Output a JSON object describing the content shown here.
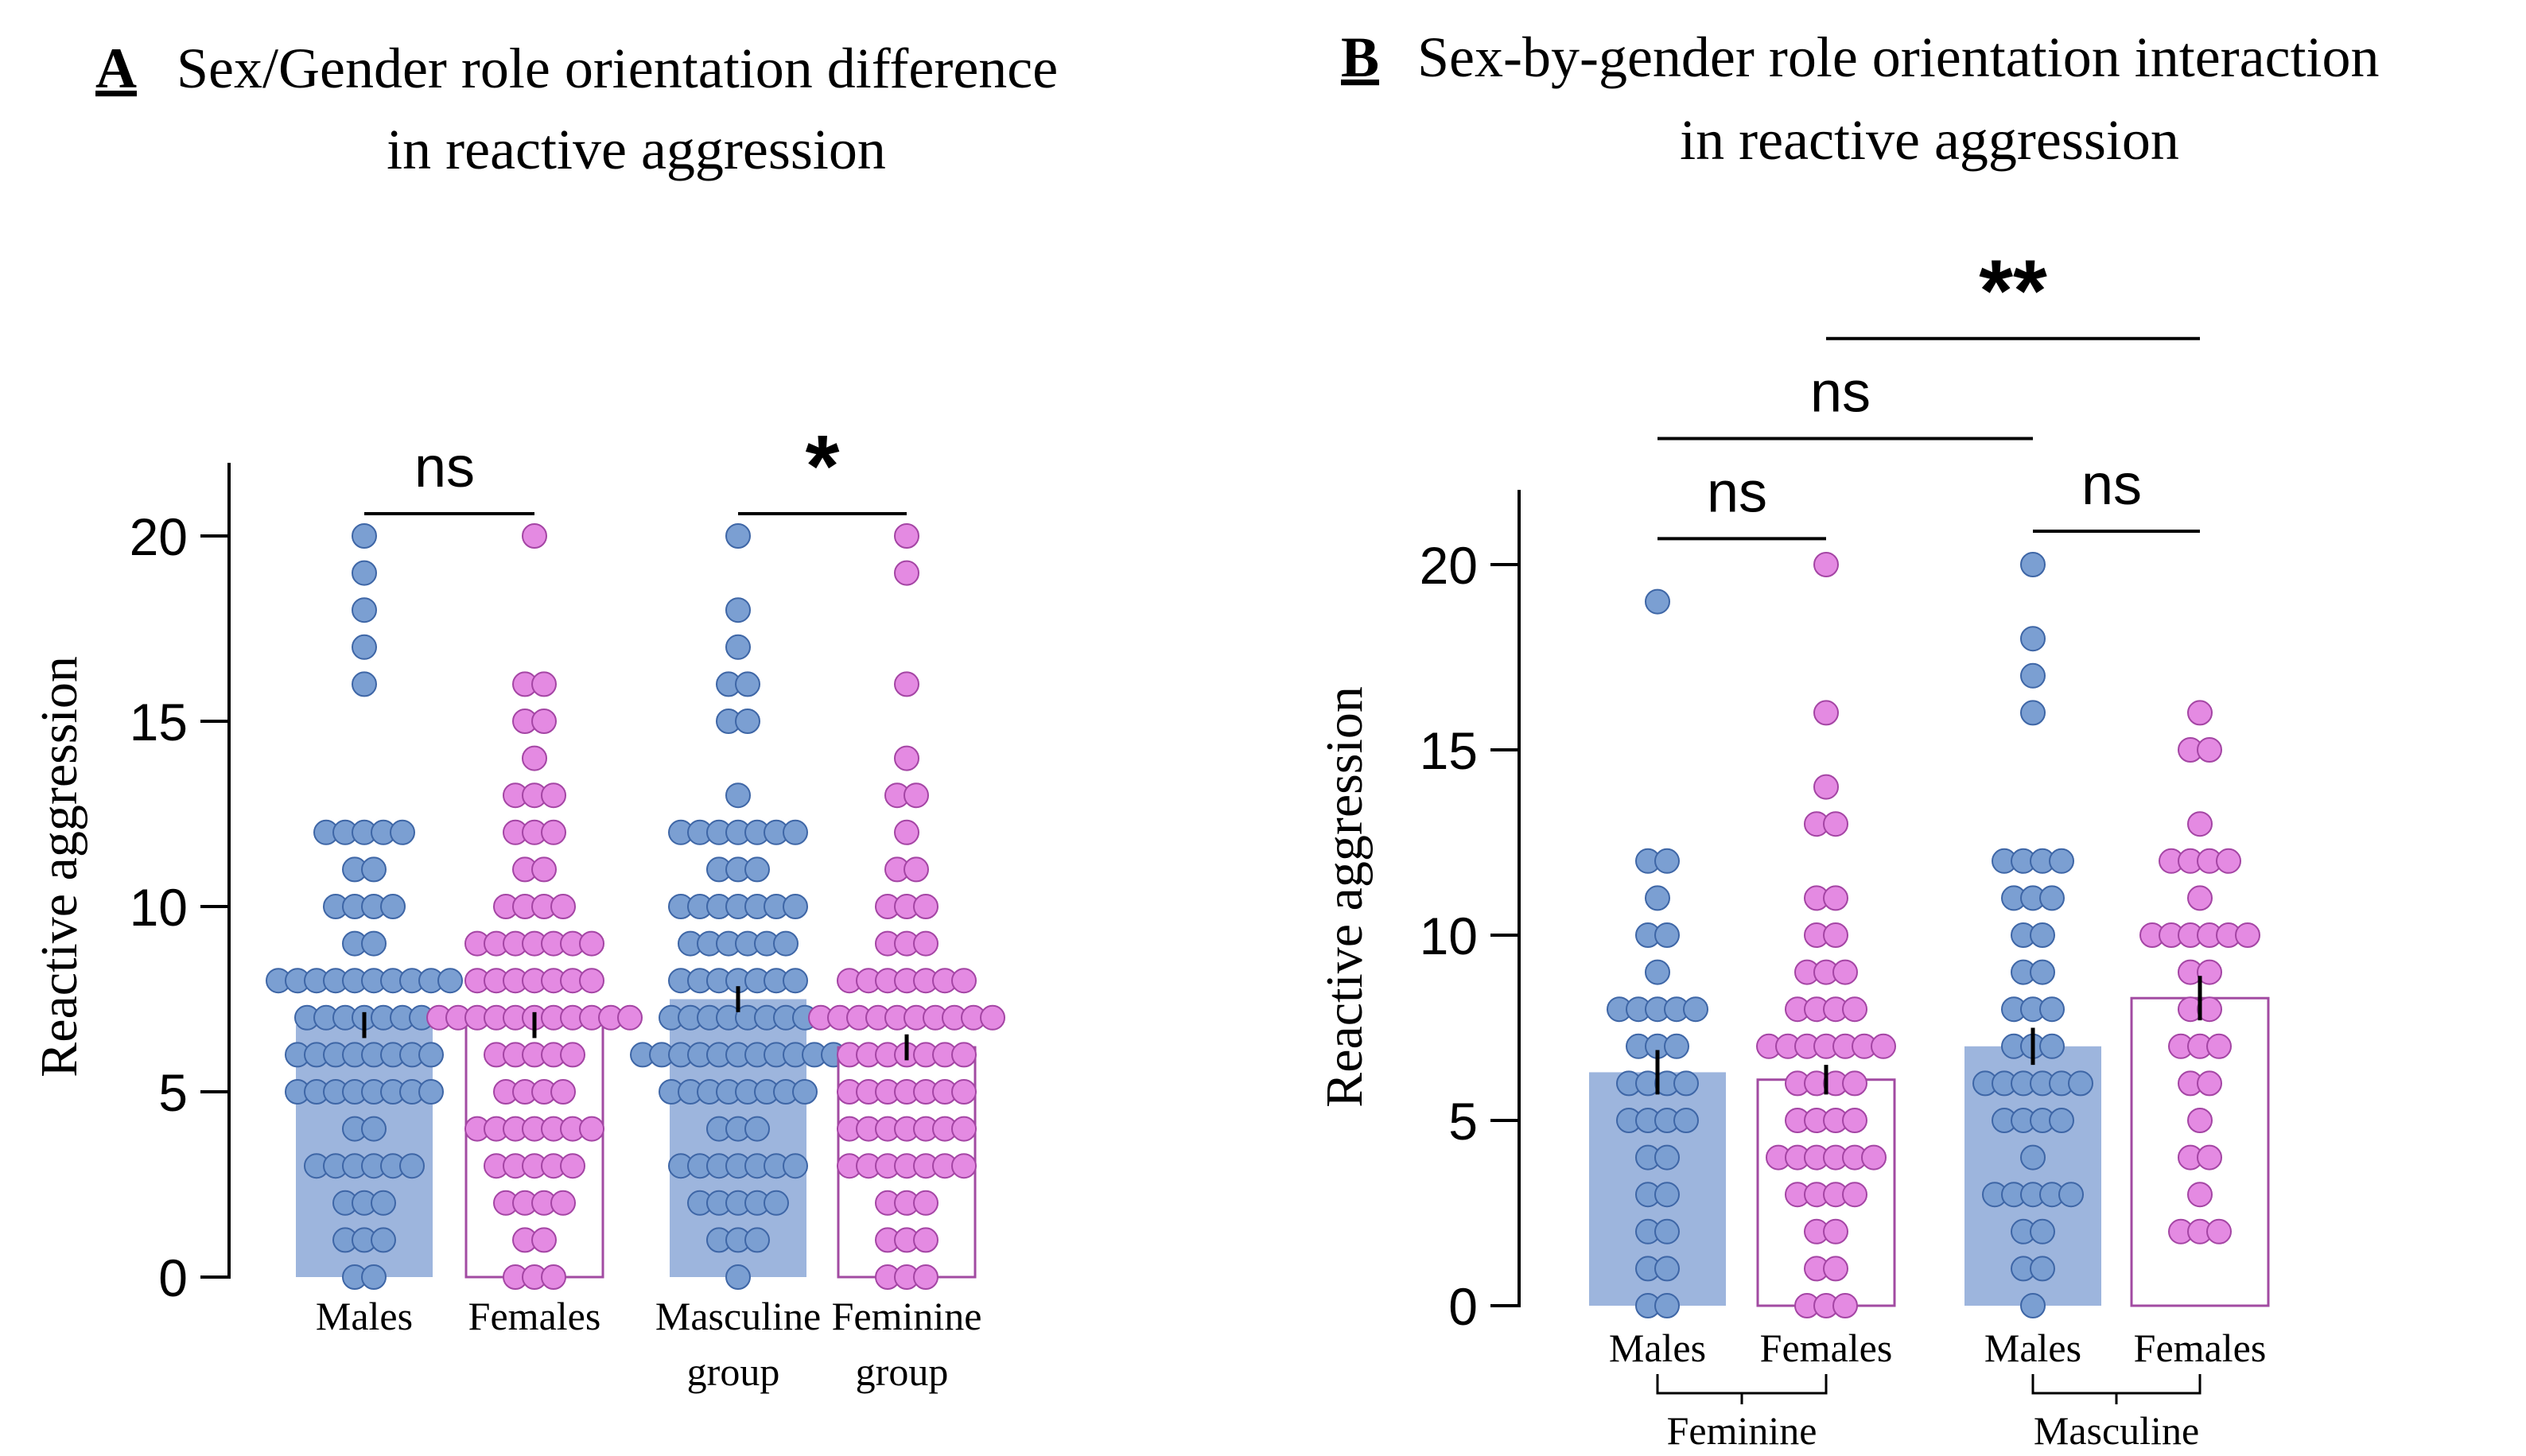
{
  "colors": {
    "male": "#7b9fd2",
    "male_bar": "#9db5dd",
    "female": "#e48ae2",
    "female_bar_edge": "#a24ba2",
    "female_dot_edge": "#a445a4",
    "male_dot_edge": "#3e66a6",
    "axis": "#000000"
  },
  "chart_data": [
    {
      "type": "bar",
      "panel_letter": "A",
      "title_line1": "Sex/Gender role orientation difference",
      "title_line2": "in reactive aggression",
      "ylabel": "Reactive aggression",
      "ylim": [
        0,
        22
      ],
      "yticks": [
        0,
        5,
        10,
        15,
        20
      ],
      "bars": [
        {
          "label": "Males",
          "label2": "",
          "mean": 6.8,
          "sem": 0.35,
          "style": "filled",
          "points": [
            0,
            0,
            1,
            1,
            1,
            2,
            2,
            2,
            3,
            3,
            3,
            3,
            3,
            3,
            4,
            4,
            5,
            5,
            5,
            5,
            5,
            5,
            5,
            5,
            6,
            6,
            6,
            6,
            6,
            6,
            6,
            6,
            7,
            7,
            7,
            7,
            7,
            7,
            7,
            8,
            8,
            8,
            8,
            8,
            8,
            8,
            8,
            8,
            8,
            9,
            9,
            10,
            10,
            10,
            10,
            11,
            11,
            12,
            12,
            12,
            12,
            12,
            16,
            17,
            18,
            19,
            20
          ]
        },
        {
          "label": "Females",
          "label2": "",
          "mean": 6.8,
          "sem": 0.35,
          "style": "outline",
          "points": [
            0,
            0,
            0,
            1,
            1,
            2,
            2,
            2,
            2,
            3,
            3,
            3,
            3,
            3,
            4,
            4,
            4,
            4,
            4,
            4,
            4,
            5,
            5,
            5,
            5,
            6,
            6,
            6,
            6,
            6,
            7,
            7,
            7,
            7,
            7,
            7,
            7,
            7,
            7,
            7,
            7,
            8,
            8,
            8,
            8,
            8,
            8,
            8,
            9,
            9,
            9,
            9,
            9,
            9,
            9,
            10,
            10,
            10,
            10,
            11,
            11,
            12,
            12,
            12,
            13,
            13,
            13,
            14,
            15,
            15,
            16,
            16,
            20
          ]
        },
        {
          "label": "Masculine",
          "label2": "group",
          "mean": 7.5,
          "sem": 0.35,
          "style": "filled",
          "points": [
            0,
            1,
            1,
            1,
            2,
            2,
            2,
            2,
            2,
            3,
            3,
            3,
            3,
            3,
            3,
            3,
            4,
            4,
            4,
            5,
            5,
            5,
            5,
            5,
            5,
            5,
            5,
            6,
            6,
            6,
            6,
            6,
            6,
            6,
            6,
            6,
            6,
            6,
            7,
            7,
            7,
            7,
            7,
            7,
            7,
            7,
            8,
            8,
            8,
            8,
            8,
            8,
            8,
            9,
            9,
            9,
            9,
            9,
            9,
            10,
            10,
            10,
            10,
            10,
            10,
            10,
            11,
            11,
            11,
            12,
            12,
            12,
            12,
            12,
            12,
            12,
            13,
            15,
            15,
            16,
            16,
            17,
            18,
            20
          ]
        },
        {
          "label": "Feminine",
          "label2": "group",
          "mean": 6.2,
          "sem": 0.35,
          "style": "outline",
          "points": [
            0,
            0,
            0,
            1,
            1,
            1,
            2,
            2,
            2,
            3,
            3,
            3,
            3,
            3,
            3,
            3,
            4,
            4,
            4,
            4,
            4,
            4,
            4,
            5,
            5,
            5,
            5,
            5,
            5,
            5,
            6,
            6,
            6,
            6,
            6,
            6,
            6,
            7,
            7,
            7,
            7,
            7,
            7,
            7,
            7,
            7,
            7,
            8,
            8,
            8,
            8,
            8,
            8,
            8,
            9,
            9,
            9,
            10,
            10,
            10,
            11,
            11,
            12,
            13,
            13,
            14,
            16,
            19,
            20
          ]
        }
      ],
      "comparisons": [
        {
          "from": 0,
          "to": 1,
          "label": "ns",
          "level": 20.6
        },
        {
          "from": 2,
          "to": 3,
          "label": "*",
          "level": 20.6
        }
      ]
    },
    {
      "type": "bar",
      "panel_letter": "B",
      "title_line1": "Sex-by-gender role orientation interaction",
      "title_line2": "in reactive aggression",
      "ylabel": "Reactive aggression",
      "ylim": [
        0,
        22
      ],
      "yticks": [
        0,
        5,
        10,
        15,
        20
      ],
      "bars": [
        {
          "label": "Males",
          "mean": 6.3,
          "sem": 0.6,
          "style": "filled",
          "points": [
            0,
            0,
            1,
            1,
            2,
            2,
            3,
            3,
            4,
            4,
            5,
            5,
            5,
            5,
            6,
            6,
            6,
            6,
            7,
            7,
            7,
            8,
            8,
            8,
            8,
            8,
            9,
            10,
            10,
            11,
            12,
            12,
            19
          ]
        },
        {
          "label": "Females",
          "mean": 6.1,
          "sem": 0.4,
          "style": "outline",
          "points": [
            0,
            0,
            0,
            1,
            1,
            2,
            2,
            3,
            3,
            3,
            3,
            4,
            4,
            4,
            4,
            4,
            4,
            5,
            5,
            5,
            5,
            6,
            6,
            6,
            6,
            7,
            7,
            7,
            7,
            7,
            7,
            7,
            8,
            8,
            8,
            8,
            9,
            9,
            9,
            10,
            10,
            11,
            11,
            13,
            13,
            14,
            16,
            20
          ]
        },
        {
          "label": "Males",
          "mean": 7.0,
          "sem": 0.5,
          "style": "filled",
          "points": [
            0,
            1,
            1,
            2,
            2,
            3,
            3,
            3,
            3,
            3,
            4,
            5,
            5,
            5,
            5,
            6,
            6,
            6,
            6,
            6,
            6,
            7,
            7,
            7,
            8,
            8,
            8,
            9,
            9,
            10,
            10,
            11,
            11,
            11,
            12,
            12,
            12,
            12,
            16,
            17,
            18,
            20
          ]
        },
        {
          "label": "Females",
          "mean": 8.3,
          "sem": 0.6,
          "style": "outline",
          "points": [
            2,
            2,
            2,
            3,
            4,
            4,
            5,
            6,
            6,
            7,
            7,
            7,
            8,
            8,
            9,
            9,
            10,
            10,
            10,
            10,
            10,
            10,
            11,
            12,
            12,
            12,
            12,
            13,
            15,
            15,
            16
          ]
        }
      ],
      "groups": [
        {
          "label": "Feminine",
          "from": 0,
          "to": 1
        },
        {
          "label": "Masculine",
          "from": 2,
          "to": 3
        }
      ],
      "comparisons": [
        {
          "from": 0,
          "to": 1,
          "label": "ns",
          "level": 20.7
        },
        {
          "from": 2,
          "to": 3,
          "label": "ns",
          "level": 20.9
        },
        {
          "from": 0,
          "to": 2,
          "label": "ns",
          "level": 23.4
        },
        {
          "from": 1,
          "to": 3,
          "label": "**",
          "level": 26.1
        }
      ]
    }
  ]
}
